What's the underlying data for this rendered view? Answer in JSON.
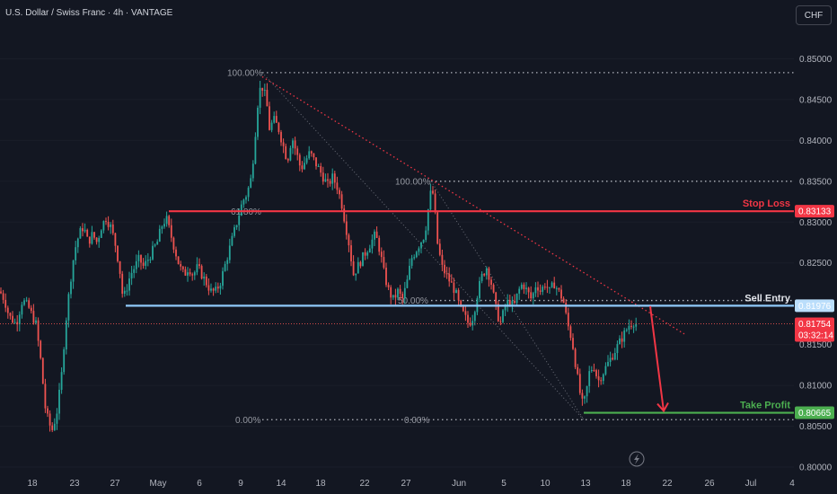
{
  "header": {
    "symbol_title": "U.S. Dollar / Swiss Franc · 4h · VANTAGE",
    "currency_button": "CHF"
  },
  "colors": {
    "background": "#131722",
    "bull": "#26a69a",
    "bear": "#ef5350",
    "stop_loss": "#f23645",
    "entry": "#90caf9",
    "take_profit": "#4caf50",
    "fib_dots": "#b2b5be",
    "trend": "#f23645"
  },
  "chart_data": {
    "type": "candlestick",
    "instrument": "USDCHF",
    "timeframe": "4h",
    "y_axis": {
      "range": [
        0.8,
        0.855
      ],
      "ticks": [
        "0.80000",
        "0.80500",
        "0.81000",
        "0.81500",
        "0.82000",
        "0.82500",
        "0.83000",
        "0.83500",
        "0.84000",
        "0.84500",
        "0.85000"
      ]
    },
    "x_axis": {
      "ticks": [
        "18",
        "23",
        "27",
        "May",
        "6",
        "9",
        "14",
        "18",
        "22",
        "27",
        "Jun",
        "5",
        "10",
        "13",
        "18",
        "22",
        "26",
        "Jul",
        "4"
      ]
    },
    "price_path": [
      [
        0,
        0.8215
      ],
      [
        5,
        0.8205
      ],
      [
        10,
        0.8185
      ],
      [
        18,
        0.8175
      ],
      [
        25,
        0.8205
      ],
      [
        32,
        0.8195
      ],
      [
        40,
        0.8175
      ],
      [
        46,
        0.8125
      ],
      [
        50,
        0.8075
      ],
      [
        54,
        0.8055
      ],
      [
        58,
        0.8045
      ],
      [
        63,
        0.8065
      ],
      [
        68,
        0.8105
      ],
      [
        73,
        0.8175
      ],
      [
        78,
        0.8225
      ],
      [
        83,
        0.8265
      ],
      [
        88,
        0.8285
      ],
      [
        93,
        0.8295
      ],
      [
        98,
        0.8275
      ],
      [
        103,
        0.8285
      ],
      [
        108,
        0.8275
      ],
      [
        113,
        0.8295
      ],
      [
        118,
        0.8305
      ],
      [
        123,
        0.8295
      ],
      [
        128,
        0.8275
      ],
      [
        133,
        0.8245
      ],
      [
        137,
        0.8205
      ],
      [
        140,
        0.8215
      ],
      [
        145,
        0.8235
      ],
      [
        150,
        0.8245
      ],
      [
        155,
        0.8255
      ],
      [
        160,
        0.8245
      ],
      [
        165,
        0.8255
      ],
      [
        170,
        0.8265
      ],
      [
        175,
        0.8275
      ],
      [
        180,
        0.8295
      ],
      [
        185,
        0.8305
      ],
      [
        190,
        0.8285
      ],
      [
        195,
        0.8265
      ],
      [
        200,
        0.8245
      ],
      [
        205,
        0.8235
      ],
      [
        210,
        0.8245
      ],
      [
        215,
        0.8235
      ],
      [
        220,
        0.8245
      ],
      [
        225,
        0.8235
      ],
      [
        230,
        0.8225
      ],
      [
        235,
        0.8215
      ],
      [
        240,
        0.8215
      ],
      [
        245,
        0.8225
      ],
      [
        250,
        0.8245
      ],
      [
        255,
        0.8265
      ],
      [
        260,
        0.8285
      ],
      [
        265,
        0.8305
      ],
      [
        270,
        0.8325
      ],
      [
        275,
        0.8335
      ],
      [
        280,
        0.8355
      ],
      [
        284,
        0.8405
      ],
      [
        287,
        0.8445
      ],
      [
        290,
        0.8465
      ],
      [
        293,
        0.8465
      ],
      [
        297,
        0.8445
      ],
      [
        300,
        0.8415
      ],
      [
        305,
        0.8425
      ],
      [
        310,
        0.8415
      ],
      [
        315,
        0.8395
      ],
      [
        320,
        0.8375
      ],
      [
        325,
        0.8405
      ],
      [
        330,
        0.8385
      ],
      [
        335,
        0.8365
      ],
      [
        340,
        0.8375
      ],
      [
        345,
        0.8385
      ],
      [
        350,
        0.8375
      ],
      [
        355,
        0.8365
      ],
      [
        360,
        0.8355
      ],
      [
        365,
        0.8345
      ],
      [
        370,
        0.8355
      ],
      [
        375,
        0.8345
      ],
      [
        380,
        0.8325
      ],
      [
        385,
        0.8295
      ],
      [
        390,
        0.8265
      ],
      [
        393,
        0.8235
      ],
      [
        398,
        0.8245
      ],
      [
        403,
        0.8255
      ],
      [
        408,
        0.8265
      ],
      [
        413,
        0.8275
      ],
      [
        418,
        0.8285
      ],
      [
        423,
        0.8265
      ],
      [
        428,
        0.8235
      ],
      [
        433,
        0.8215
      ],
      [
        438,
        0.8205
      ],
      [
        443,
        0.8215
      ],
      [
        448,
        0.8205
      ],
      [
        453,
        0.8225
      ],
      [
        458,
        0.8255
      ],
      [
        463,
        0.8265
      ],
      [
        468,
        0.8275
      ],
      [
        473,
        0.8285
      ],
      [
        478,
        0.8325
      ],
      [
        481,
        0.8345
      ],
      [
        484,
        0.8315
      ],
      [
        487,
        0.8275
      ],
      [
        492,
        0.8245
      ],
      [
        497,
        0.8235
      ],
      [
        502,
        0.8225
      ],
      [
        507,
        0.8215
      ],
      [
        512,
        0.8195
      ],
      [
        517,
        0.8185
      ],
      [
        522,
        0.8175
      ],
      [
        527,
        0.8185
      ],
      [
        532,
        0.8215
      ],
      [
        537,
        0.8235
      ],
      [
        542,
        0.8245
      ],
      [
        547,
        0.8225
      ],
      [
        552,
        0.8195
      ],
      [
        557,
        0.8175
      ],
      [
        562,
        0.8195
      ],
      [
        567,
        0.8205
      ],
      [
        572,
        0.8195
      ],
      [
        577,
        0.8215
      ],
      [
        582,
        0.8225
      ],
      [
        587,
        0.8215
      ],
      [
        592,
        0.8205
      ],
      [
        597,
        0.8225
      ],
      [
        602,
        0.8215
      ],
      [
        607,
        0.8225
      ],
      [
        612,
        0.8215
      ],
      [
        617,
        0.8225
      ],
      [
        622,
        0.8215
      ],
      [
        627,
        0.8205
      ],
      [
        632,
        0.8175
      ],
      [
        637,
        0.8155
      ],
      [
        641,
        0.8125
      ],
      [
        645,
        0.8095
      ],
      [
        649,
        0.8075
      ],
      [
        652,
        0.8085
      ],
      [
        656,
        0.8115
      ],
      [
        661,
        0.8125
      ],
      [
        666,
        0.8105
      ],
      [
        671,
        0.8115
      ],
      [
        676,
        0.8125
      ],
      [
        681,
        0.8135
      ],
      [
        686,
        0.8145
      ],
      [
        691,
        0.8155
      ],
      [
        696,
        0.8165
      ],
      [
        701,
        0.8175
      ],
      [
        706,
        0.8178
      ],
      [
        709,
        0.8175
      ]
    ],
    "fib_levels": [
      {
        "label": "100.00%",
        "price": 0.8483
      },
      {
        "label": "0.00%",
        "price": 0.8058
      },
      {
        "label": "100.00%",
        "price": 0.835
      },
      {
        "label": "61.80%",
        "price": 0.8313
      },
      {
        "label": "50.00%",
        "price": 0.8204
      },
      {
        "label": "0.00%",
        "price": 0.8058
      }
    ],
    "levels": {
      "stop_loss": {
        "label": "Stop Loss",
        "price": 0.83133,
        "badge": "0.83133"
      },
      "sell_entry": {
        "label": "Sell Entry",
        "price": 0.81976,
        "badge": "0.81976"
      },
      "take_profit": {
        "label": "Take Profit",
        "price": 0.80665,
        "badge": "0.80665"
      },
      "current": {
        "price": 0.81754,
        "badge": "0.81754",
        "countdown": "03:32:14"
      }
    }
  }
}
